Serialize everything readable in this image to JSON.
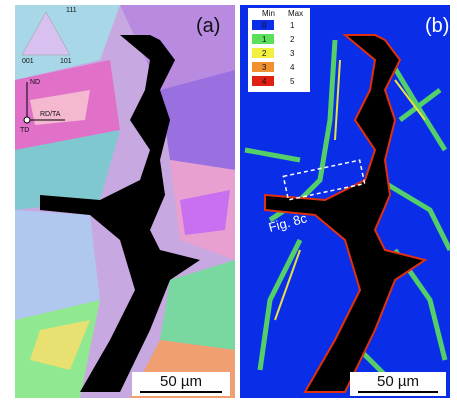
{
  "panel_a": {
    "label": "(a)",
    "ipf": [
      "111",
      "001",
      "101"
    ],
    "axes": {
      "nd": "ND",
      "rd": "RD/TA",
      "td": "TD"
    },
    "scale_bar": "50 µm"
  },
  "panel_b": {
    "label": "(b)",
    "legend": {
      "header": [
        "Min",
        "Max"
      ],
      "rows": [
        [
          "0",
          "1"
        ],
        [
          "1",
          "2"
        ],
        [
          "2",
          "3"
        ],
        [
          "3",
          "4"
        ],
        [
          "4",
          "5"
        ]
      ]
    },
    "annotation": "Fig. 8c",
    "scale_bar": "50 µm"
  }
}
